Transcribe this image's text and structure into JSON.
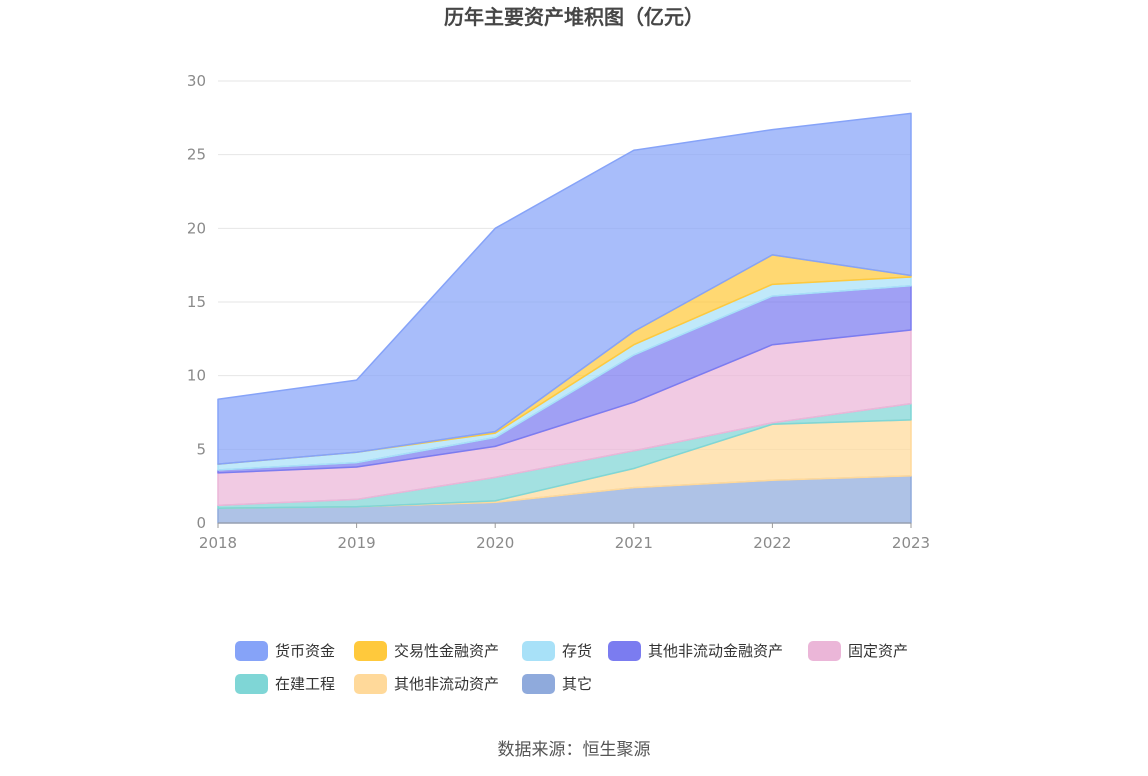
{
  "chart_data": {
    "type": "area",
    "stacked": true,
    "title": "历年主要资产堆积图（亿元）",
    "xlabel": "",
    "ylabel": "",
    "x": [
      "2018",
      "2019",
      "2020",
      "2021",
      "2022",
      "2023"
    ],
    "ylim": [
      0,
      30
    ],
    "yticks": [
      0,
      5,
      10,
      15,
      20,
      25,
      30
    ],
    "grid": true,
    "legend_position": "bottom",
    "series": [
      {
        "name": "其它",
        "color": "#8FAADC",
        "values": [
          1.0,
          1.1,
          1.4,
          2.4,
          2.9,
          3.2
        ]
      },
      {
        "name": "其他非流动资产",
        "color": "#FFD99A",
        "values": [
          0.0,
          0.0,
          0.1,
          1.3,
          3.8,
          3.8
        ]
      },
      {
        "name": "在建工程",
        "color": "#7FD6D6",
        "values": [
          0.2,
          0.5,
          1.6,
          1.2,
          0.1,
          1.1
        ]
      },
      {
        "name": "固定资产",
        "color": "#EBB6D8",
        "values": [
          2.2,
          2.2,
          2.1,
          3.3,
          5.3,
          5.0
        ]
      },
      {
        "name": "其他非流动金融资产",
        "color": "#7B7CF0",
        "values": [
          0.2,
          0.3,
          0.6,
          3.2,
          3.3,
          3.0
        ]
      },
      {
        "name": "存货",
        "color": "#A8E1F8",
        "values": [
          0.4,
          0.7,
          0.3,
          0.7,
          0.8,
          0.6
        ]
      },
      {
        "name": "交易性金融资产",
        "color": "#FFC93C",
        "values": [
          0.0,
          0.0,
          0.1,
          0.9,
          2.0,
          0.1
        ]
      },
      {
        "name": "货币资金",
        "color": "#86A3F8",
        "values": [
          4.4,
          4.9,
          13.8,
          12.3,
          8.5,
          11.0
        ]
      }
    ],
    "legend_order": [
      "货币资金",
      "交易性金融资产",
      "存货",
      "其他非流动金融资产",
      "固定资产",
      "在建工程",
      "其他非流动资产",
      "其它"
    ]
  },
  "source": "数据来源：恒生聚源"
}
